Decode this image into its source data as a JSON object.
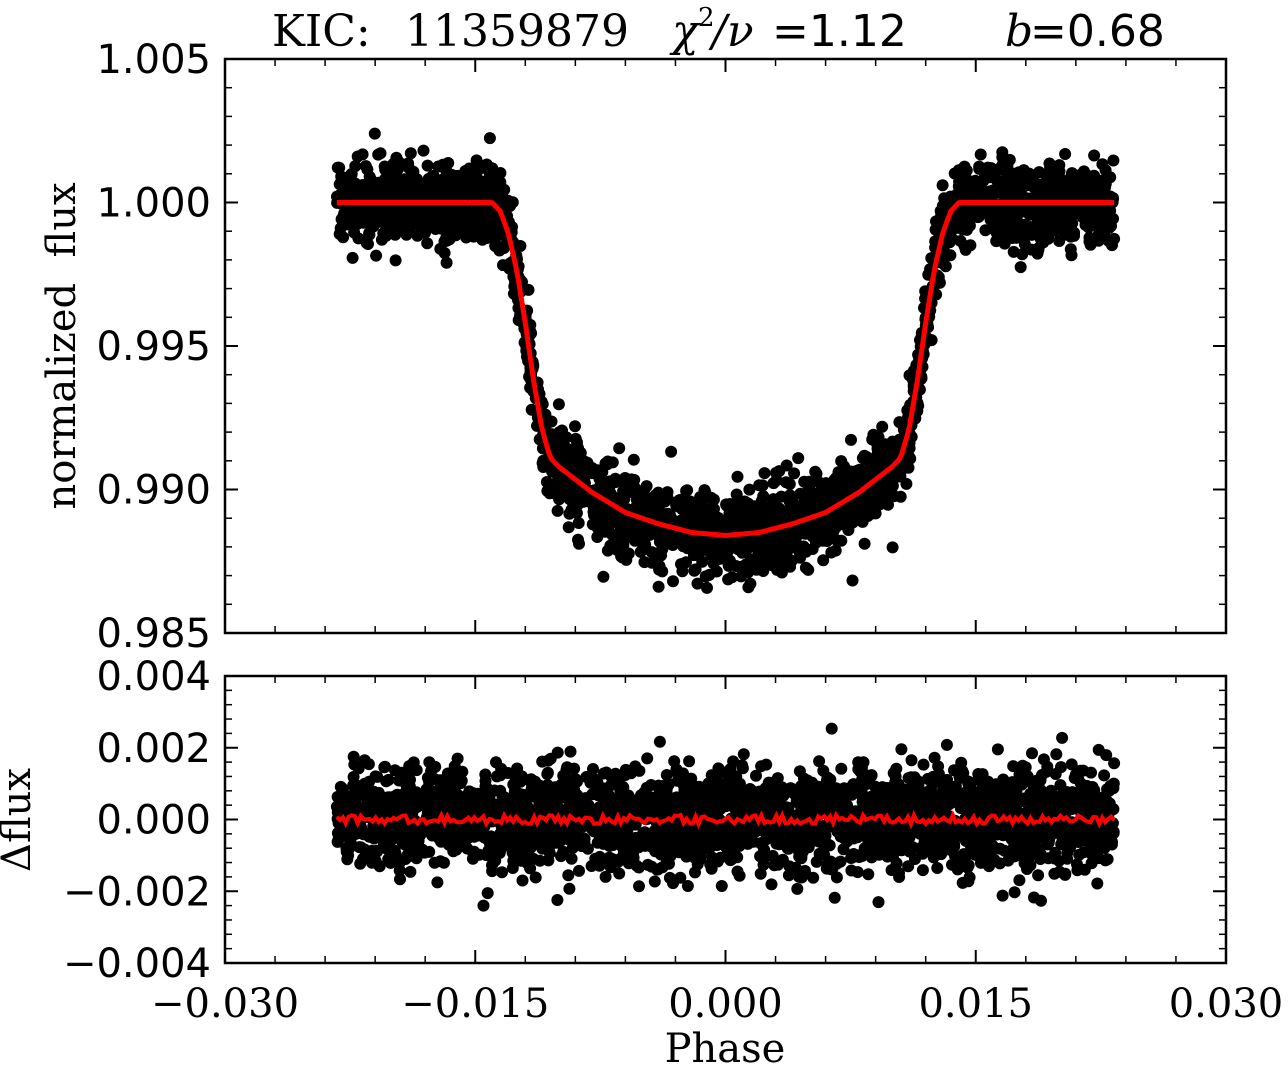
{
  "title": {
    "kic_label": "KIC:",
    "kic_id": "11359879",
    "chi_symbol": "χ",
    "chi_sup": "2",
    "chi_slash_nu": " /ν",
    "chi_value": "=1.12",
    "b_symbol": "b",
    "b_value": "=0.68"
  },
  "chart_data": [
    {
      "type": "scatter",
      "panel": "top",
      "ylabel": "normalized  flux",
      "xlabel": "",
      "xlim": [
        -0.03,
        0.03
      ],
      "ylim": [
        0.985,
        1.005
      ],
      "yticks": [
        "0.985",
        "0.990",
        "0.995",
        "1.000",
        "1.005"
      ],
      "ytick_values": [
        0.985,
        0.99,
        0.995,
        1.0,
        1.005
      ],
      "grid": false,
      "colors": {
        "points": "#000000",
        "model": "#ff0000"
      },
      "points_description_range": {
        "x": [
          -0.0233,
          0.0233
        ]
      },
      "series": [
        {
          "kind": "model-line",
          "x": [
            -0.0233,
            -0.014,
            -0.0135,
            -0.013,
            -0.0125,
            -0.012,
            -0.0115,
            -0.011,
            -0.0105,
            -0.01,
            -0.008,
            -0.006,
            -0.004,
            -0.002,
            0.0,
            0.002,
            0.004,
            0.006,
            0.008,
            0.01,
            0.0105,
            0.011,
            0.0115,
            0.012,
            0.0125,
            0.013,
            0.0135,
            0.014,
            0.0233
          ],
          "y": [
            1.0,
            1.0,
            0.9997,
            0.9989,
            0.9976,
            0.9958,
            0.9938,
            0.9921,
            0.9911,
            0.9908,
            0.9899,
            0.9892,
            0.9888,
            0.9885,
            0.9884,
            0.9885,
            0.9888,
            0.9892,
            0.9899,
            0.9908,
            0.9911,
            0.9921,
            0.9938,
            0.9958,
            0.9976,
            0.9989,
            0.9997,
            1.0,
            1.0
          ]
        }
      ]
    },
    {
      "type": "scatter",
      "panel": "bottom",
      "ylabel": "Δflux",
      "xlabel": "Phase",
      "xlim": [
        -0.03,
        0.03
      ],
      "ylim": [
        -0.004,
        0.004
      ],
      "xticks": [
        "−0.030",
        "−0.015",
        "0.000",
        "0.015",
        "0.030"
      ],
      "xtick_values": [
        -0.03,
        -0.015,
        0.0,
        0.015,
        0.03
      ],
      "yticks": [
        "−0.004",
        "−0.002",
        "0.000",
        "0.002",
        "0.004"
      ],
      "ytick_values": [
        -0.004,
        -0.002,
        0.0,
        0.002,
        0.004
      ],
      "grid": false,
      "colors": {
        "points": "#000000",
        "model": "#ff0000"
      },
      "series": [
        {
          "kind": "binned-residual-line",
          "x": [
            -0.0233,
            0.0233
          ],
          "y": [
            0.0,
            0.0
          ]
        }
      ]
    }
  ]
}
